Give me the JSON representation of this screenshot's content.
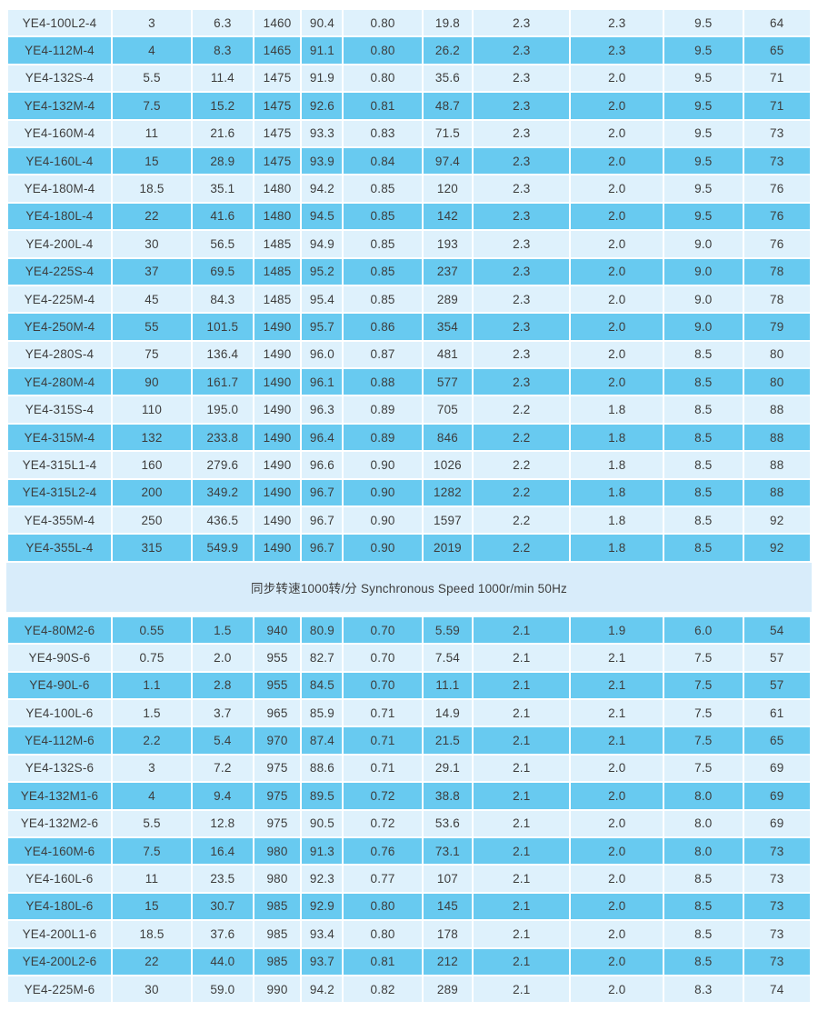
{
  "page": {
    "section_divider_label": "同步转速1000转/分 Synchronous Speed 1000r/min 50Hz"
  },
  "colors": {
    "page_background": "#ffffff",
    "row_dark": "#68caf0",
    "row_light": "#def1fc",
    "divider_band": "#d8ecfa",
    "cell_text": "#3d3d3d"
  },
  "tables": [
    {
      "name": "synchronous-speed-1500-table",
      "first_row_shade": "light",
      "rows": [
        [
          "YE4-100L2-4",
          "3",
          "6.3",
          "1460",
          "90.4",
          "0.80",
          "19.8",
          "2.3",
          "2.3",
          "9.5",
          "64"
        ],
        [
          "YE4-112M-4",
          "4",
          "8.3",
          "1465",
          "91.1",
          "0.80",
          "26.2",
          "2.3",
          "2.3",
          "9.5",
          "65"
        ],
        [
          "YE4-132S-4",
          "5.5",
          "11.4",
          "1475",
          "91.9",
          "0.80",
          "35.6",
          "2.3",
          "2.0",
          "9.5",
          "71"
        ],
        [
          "YE4-132M-4",
          "7.5",
          "15.2",
          "1475",
          "92.6",
          "0.81",
          "48.7",
          "2.3",
          "2.0",
          "9.5",
          "71"
        ],
        [
          "YE4-160M-4",
          "11",
          "21.6",
          "1475",
          "93.3",
          "0.83",
          "71.5",
          "2.3",
          "2.0",
          "9.5",
          "73"
        ],
        [
          "YE4-160L-4",
          "15",
          "28.9",
          "1475",
          "93.9",
          "0.84",
          "97.4",
          "2.3",
          "2.0",
          "9.5",
          "73"
        ],
        [
          "YE4-180M-4",
          "18.5",
          "35.1",
          "1480",
          "94.2",
          "0.85",
          "120",
          "2.3",
          "2.0",
          "9.5",
          "76"
        ],
        [
          "YE4-180L-4",
          "22",
          "41.6",
          "1480",
          "94.5",
          "0.85",
          "142",
          "2.3",
          "2.0",
          "9.5",
          "76"
        ],
        [
          "YE4-200L-4",
          "30",
          "56.5",
          "1485",
          "94.9",
          "0.85",
          "193",
          "2.3",
          "2.0",
          "9.0",
          "76"
        ],
        [
          "YE4-225S-4",
          "37",
          "69.5",
          "1485",
          "95.2",
          "0.85",
          "237",
          "2.3",
          "2.0",
          "9.0",
          "78"
        ],
        [
          "YE4-225M-4",
          "45",
          "84.3",
          "1485",
          "95.4",
          "0.85",
          "289",
          "2.3",
          "2.0",
          "9.0",
          "78"
        ],
        [
          "YE4-250M-4",
          "55",
          "101.5",
          "1490",
          "95.7",
          "0.86",
          "354",
          "2.3",
          "2.0",
          "9.0",
          "79"
        ],
        [
          "YE4-280S-4",
          "75",
          "136.4",
          "1490",
          "96.0",
          "0.87",
          "481",
          "2.3",
          "2.0",
          "8.5",
          "80"
        ],
        [
          "YE4-280M-4",
          "90",
          "161.7",
          "1490",
          "96.1",
          "0.88",
          "577",
          "2.3",
          "2.0",
          "8.5",
          "80"
        ],
        [
          "YE4-315S-4",
          "110",
          "195.0",
          "1490",
          "96.3",
          "0.89",
          "705",
          "2.2",
          "1.8",
          "8.5",
          "88"
        ],
        [
          "YE4-315M-4",
          "132",
          "233.8",
          "1490",
          "96.4",
          "0.89",
          "846",
          "2.2",
          "1.8",
          "8.5",
          "88"
        ],
        [
          "YE4-315L1-4",
          "160",
          "279.6",
          "1490",
          "96.6",
          "0.90",
          "1026",
          "2.2",
          "1.8",
          "8.5",
          "88"
        ],
        [
          "YE4-315L2-4",
          "200",
          "349.2",
          "1490",
          "96.7",
          "0.90",
          "1282",
          "2.2",
          "1.8",
          "8.5",
          "88"
        ],
        [
          "YE4-355M-4",
          "250",
          "436.5",
          "1490",
          "96.7",
          "0.90",
          "1597",
          "2.2",
          "1.8",
          "8.5",
          "92"
        ],
        [
          "YE4-355L-4",
          "315",
          "549.9",
          "1490",
          "96.7",
          "0.90",
          "2019",
          "2.2",
          "1.8",
          "8.5",
          "92"
        ]
      ]
    },
    {
      "name": "synchronous-speed-1000-table",
      "first_row_shade": "dark",
      "rows": [
        [
          "YE4-80M2-6",
          "0.55",
          "1.5",
          "940",
          "80.9",
          "0.70",
          "5.59",
          "2.1",
          "1.9",
          "6.0",
          "54"
        ],
        [
          "YE4-90S-6",
          "0.75",
          "2.0",
          "955",
          "82.7",
          "0.70",
          "7.54",
          "2.1",
          "2.1",
          "7.5",
          "57"
        ],
        [
          "YE4-90L-6",
          "1.1",
          "2.8",
          "955",
          "84.5",
          "0.70",
          "11.1",
          "2.1",
          "2.1",
          "7.5",
          "57"
        ],
        [
          "YE4-100L-6",
          "1.5",
          "3.7",
          "965",
          "85.9",
          "0.71",
          "14.9",
          "2.1",
          "2.1",
          "7.5",
          "61"
        ],
        [
          "YE4-112M-6",
          "2.2",
          "5.4",
          "970",
          "87.4",
          "0.71",
          "21.5",
          "2.1",
          "2.1",
          "7.5",
          "65"
        ],
        [
          "YE4-132S-6",
          "3",
          "7.2",
          "975",
          "88.6",
          "0.71",
          "29.1",
          "2.1",
          "2.0",
          "7.5",
          "69"
        ],
        [
          "YE4-132M1-6",
          "4",
          "9.4",
          "975",
          "89.5",
          "0.72",
          "38.8",
          "2.1",
          "2.0",
          "8.0",
          "69"
        ],
        [
          "YE4-132M2-6",
          "5.5",
          "12.8",
          "975",
          "90.5",
          "0.72",
          "53.6",
          "2.1",
          "2.0",
          "8.0",
          "69"
        ],
        [
          "YE4-160M-6",
          "7.5",
          "16.4",
          "980",
          "91.3",
          "0.76",
          "73.1",
          "2.1",
          "2.0",
          "8.0",
          "73"
        ],
        [
          "YE4-160L-6",
          "11",
          "23.5",
          "980",
          "92.3",
          "0.77",
          "107",
          "2.1",
          "2.0",
          "8.5",
          "73"
        ],
        [
          "YE4-180L-6",
          "15",
          "30.7",
          "985",
          "92.9",
          "0.80",
          "145",
          "2.1",
          "2.0",
          "8.5",
          "73"
        ],
        [
          "YE4-200L1-6",
          "18.5",
          "37.6",
          "985",
          "93.4",
          "0.80",
          "178",
          "2.1",
          "2.0",
          "8.5",
          "73"
        ],
        [
          "YE4-200L2-6",
          "22",
          "44.0",
          "985",
          "93.7",
          "0.81",
          "212",
          "2.1",
          "2.0",
          "8.5",
          "73"
        ],
        [
          "YE4-225M-6",
          "30",
          "59.0",
          "990",
          "94.2",
          "0.82",
          "289",
          "2.1",
          "2.0",
          "8.3",
          "74"
        ]
      ]
    }
  ]
}
